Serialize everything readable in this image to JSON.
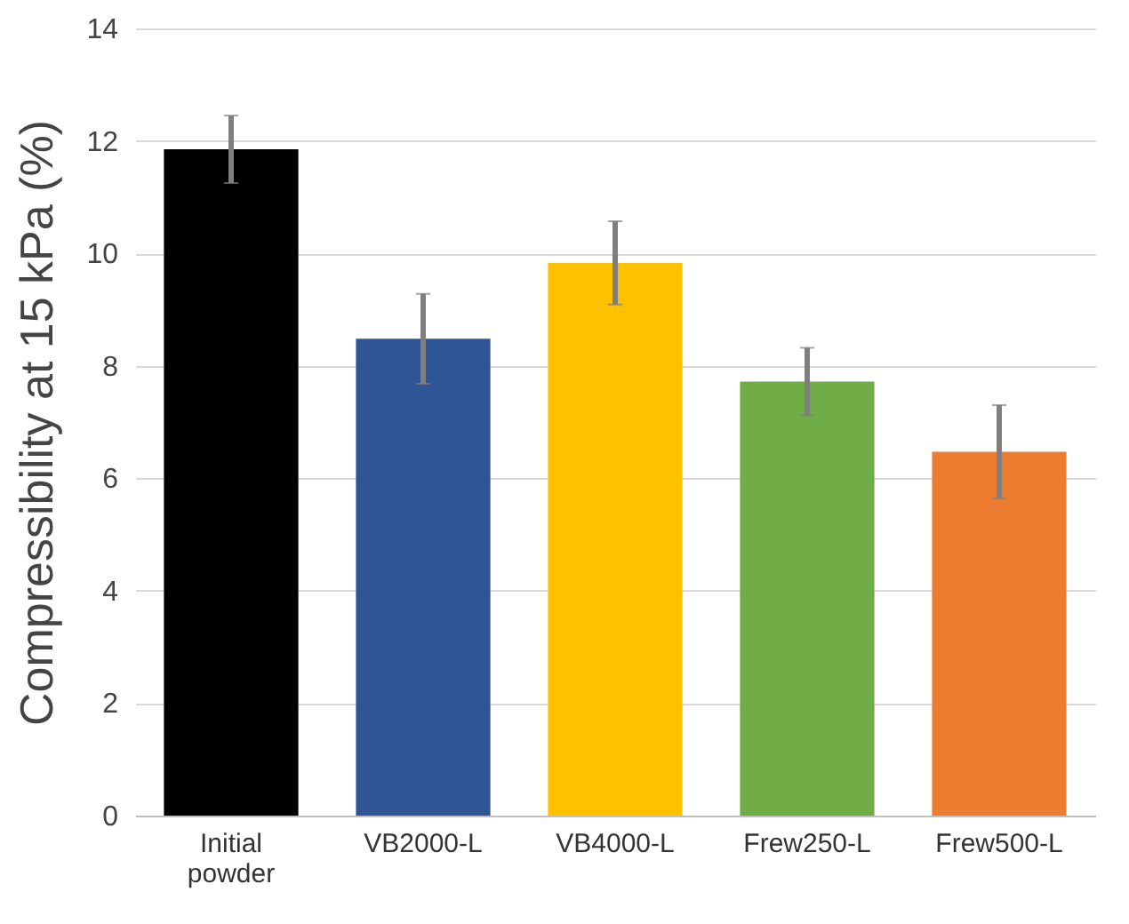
{
  "chart_data": {
    "type": "bar",
    "ylabel": "Compressibility at 15 kPa (%)",
    "categories": [
      "Initial powder",
      "VB2000-L",
      "VB4000-L",
      "Frew250-L",
      "Frew500-L"
    ],
    "values": [
      11.85,
      8.48,
      9.83,
      7.72,
      6.47
    ],
    "errors": [
      0.6,
      0.8,
      0.74,
      0.6,
      0.83
    ],
    "colors": [
      "#000000",
      "#2f5597",
      "#ffc000",
      "#70ad47",
      "#ed7d31"
    ],
    "ylim": [
      0,
      14
    ],
    "yticks": [
      0,
      2,
      4,
      6,
      8,
      10,
      12,
      14
    ],
    "grid": "y"
  }
}
